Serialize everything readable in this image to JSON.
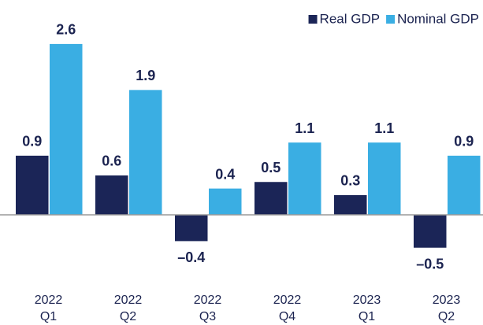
{
  "chart_data": {
    "type": "bar",
    "categories": [
      "2022 Q1",
      "2022 Q2",
      "2022 Q3",
      "2022 Q4",
      "2023 Q1",
      "2023 Q2"
    ],
    "series": [
      {
        "name": "Real GDP",
        "color": "#1b2557",
        "values": [
          0.9,
          0.6,
          -0.4,
          0.5,
          0.3,
          -0.5
        ],
        "value_labels": [
          "0.9",
          "0.6",
          "–0.4",
          "0.5",
          "0.3",
          "–0.5"
        ]
      },
      {
        "name": "Nominal GDP",
        "color": "#3aaee3",
        "values": [
          2.6,
          1.9,
          0.4,
          1.1,
          1.1,
          0.9
        ],
        "value_labels": [
          "2.6",
          "1.9",
          "0.4",
          "1.1",
          "1.1",
          "0.9"
        ]
      }
    ],
    "ylim": [
      -1,
      3
    ],
    "legend": "top-right"
  }
}
